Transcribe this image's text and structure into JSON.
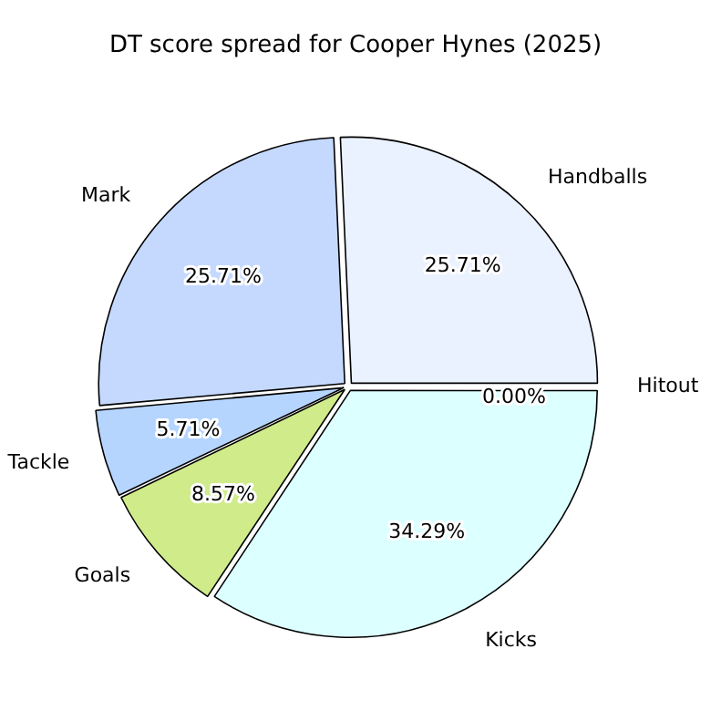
{
  "chart_data": {
    "type": "pie",
    "title": "DT score spread for Cooper Hynes (2025)",
    "categories": [
      "Handballs",
      "Mark",
      "Tackle",
      "Goals",
      "Kicks",
      "Hitout"
    ],
    "values": [
      25.71,
      25.71,
      5.71,
      8.57,
      34.29,
      0
    ],
    "colors": [
      "#eaf1ff",
      "#c5d9ff",
      "#b5d5ff",
      "#d0eb8a",
      "#dcffff",
      "#e6f5f0"
    ],
    "value_labels": [
      "25.71%",
      "25.71%",
      "5.71%",
      "8.57%",
      "34.29%",
      "0.00%"
    ],
    "legend": false
  }
}
